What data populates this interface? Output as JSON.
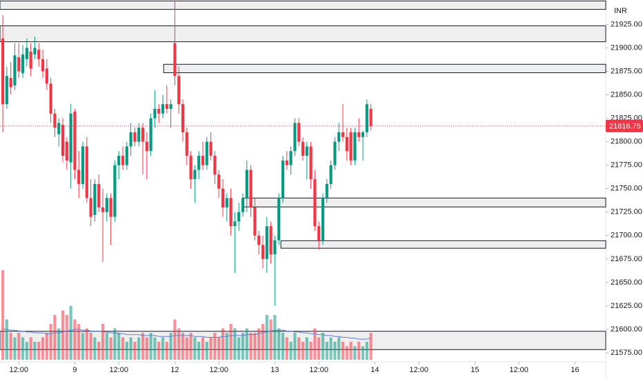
{
  "chart_data": {
    "type": "candlestick",
    "currency": "INR",
    "last_price": 21816.75,
    "up_color": "#089981",
    "down_color": "#f23645",
    "ma_color": "#5b7fd6",
    "xlim": [
      -0.7,
      150.7
    ],
    "xticks": [
      {
        "value": 4,
        "label": "12:00"
      },
      {
        "value": 18,
        "label": "9"
      },
      {
        "value": 29,
        "label": "12:00"
      },
      {
        "value": 43,
        "label": "12"
      },
      {
        "value": 54,
        "label": "12:00"
      },
      {
        "value": 68,
        "label": "13"
      },
      {
        "value": 79,
        "label": "12:00"
      },
      {
        "value": 93,
        "label": "14"
      },
      {
        "value": 104,
        "label": "12:00"
      },
      {
        "value": 118,
        "label": "15"
      },
      {
        "value": 129,
        "label": "12:00"
      },
      {
        "value": 143,
        "label": "16"
      }
    ],
    "ylim": [
      21565.5,
      21951
    ],
    "yticks": [
      {
        "value": 21575,
        "label": "21575.00"
      },
      {
        "value": 21600,
        "label": "21600.00"
      },
      {
        "value": 21625,
        "label": "21625.00"
      },
      {
        "value": 21650,
        "label": "21650.00"
      },
      {
        "value": 21675,
        "label": "21675.00"
      },
      {
        "value": 21700,
        "label": "21700.00"
      },
      {
        "value": 21725,
        "label": "21725.00"
      },
      {
        "value": 21750,
        "label": "21750.00"
      },
      {
        "value": 21775,
        "label": "21775.00"
      },
      {
        "value": 21800,
        "label": "21800.00"
      },
      {
        "value": 21825,
        "label": "21825.00"
      },
      {
        "value": 21850,
        "label": "21850.00"
      },
      {
        "value": 21875,
        "label": "21875.00"
      },
      {
        "value": 21900,
        "label": "21900.00"
      },
      {
        "value": 21925,
        "label": "21925.00"
      }
    ],
    "grid": false,
    "vlim": [
      0,
      100
    ],
    "zones": [
      {
        "start": -0.7,
        "top": 21950,
        "bottom": 21941
      },
      {
        "start": -0.7,
        "top": 21923.5,
        "bottom": 21906.5
      },
      {
        "start": 40.2,
        "top": 21882.5,
        "bottom": 21873.5
      },
      {
        "start": 60.2,
        "top": 21740,
        "bottom": 21730.5
      },
      {
        "start": 69.5,
        "top": 21694.5,
        "bottom": 21686.5
      },
      {
        "start": -0.7,
        "top": 21598,
        "bottom": 21578.5
      }
    ],
    "open": [
      21910,
      21840,
      21868,
      21860,
      21890,
      21873,
      21888,
      21896,
      21893,
      21898,
      21888,
      21878,
      21862,
      21830,
      21808,
      21818,
      21800,
      21778,
      21832,
      21770,
      21755,
      21795,
      21740,
      21722,
      21755,
      21730,
      21725,
      21740,
      21720,
      21775,
      21785,
      21775,
      21795,
      21810,
      21800,
      21815,
      21800,
      21790,
      21825,
      21835,
      21830,
      21840,
      21835,
      21905,
      21870,
      21840,
      21810,
      21785,
      21760,
      21770,
      21785,
      21775,
      21800,
      21785,
      21765,
      21750,
      21730,
      21740,
      21710,
      21715,
      21725,
      21740,
      21770,
      21730,
      21700,
      21690,
      21675,
      21710,
      21680,
      21695,
      21740,
      21780,
      21775,
      21790,
      21820,
      21800,
      21785,
      21795,
      21760,
      21710,
      21695,
      21740,
      21755,
      21775,
      21800,
      21810,
      21805,
      21810,
      21780,
      21810,
      21805,
      21810,
      21835
    ],
    "high": [
      21935,
      21880,
      21885,
      21905,
      21905,
      21903,
      21910,
      21905,
      21912,
      21905,
      21898,
      21888,
      21868,
      21835,
      21825,
      21825,
      21805,
      21840,
      21835,
      21790,
      21800,
      21805,
      21760,
      21760,
      21765,
      21750,
      21745,
      21745,
      21780,
      21790,
      21795,
      21800,
      21820,
      21815,
      21820,
      21820,
      21810,
      21830,
      21855,
      21840,
      21850,
      21860,
      21845,
      21950,
      21880,
      21845,
      21815,
      21790,
      21775,
      21790,
      21800,
      21805,
      21810,
      21790,
      21770,
      21760,
      21745,
      21750,
      21725,
      21735,
      21745,
      21780,
      21775,
      21740,
      21705,
      21700,
      21720,
      21715,
      21700,
      21745,
      21785,
      21790,
      21795,
      21825,
      21825,
      21805,
      21800,
      21800,
      21770,
      21715,
      21745,
      21760,
      21780,
      21805,
      21820,
      21840,
      21815,
      21815,
      21815,
      21825,
      21812,
      21845,
      21840
    ],
    "low": [
      21810,
      21835,
      21850,
      21855,
      21868,
      21868,
      21880,
      21870,
      21888,
      21880,
      21868,
      21855,
      21820,
      21805,
      21795,
      21778,
      21770,
      21750,
      21760,
      21740,
      21750,
      21735,
      21710,
      21715,
      21725,
      21672,
      21715,
      21690,
      21715,
      21760,
      21770,
      21770,
      21785,
      21795,
      21795,
      21765,
      21760,
      21785,
      21815,
      21820,
      21825,
      21830,
      21815,
      21860,
      21830,
      21800,
      21775,
      21750,
      21735,
      21760,
      21770,
      21770,
      21780,
      21755,
      21740,
      21720,
      21715,
      21700,
      21660,
      21705,
      21720,
      21725,
      21720,
      21695,
      21680,
      21665,
      21660,
      21670,
      21625,
      21690,
      21735,
      21770,
      21765,
      21785,
      21795,
      21780,
      21760,
      21750,
      21705,
      21685,
      21690,
      21735,
      21750,
      21770,
      21790,
      21800,
      21780,
      21775,
      21775,
      21800,
      21780,
      21805,
      21812
    ],
    "close": [
      21840,
      21870,
      21858,
      21892,
      21875,
      21893,
      21900,
      21878,
      21900,
      21888,
      21875,
      21862,
      21830,
      21815,
      21820,
      21785,
      21780,
      21830,
      21770,
      21755,
      21795,
      21740,
      21720,
      21755,
      21730,
      21725,
      21740,
      21720,
      21775,
      21785,
      21775,
      21795,
      21810,
      21800,
      21815,
      21800,
      21790,
      21825,
      21835,
      21830,
      21840,
      21835,
      21840,
      21870,
      21840,
      21810,
      21785,
      21760,
      21770,
      21785,
      21775,
      21800,
      21785,
      21765,
      21750,
      21730,
      21740,
      21710,
      21715,
      21725,
      21740,
      21770,
      21730,
      21700,
      21690,
      21675,
      21710,
      21680,
      21695,
      21740,
      21780,
      21775,
      21790,
      21820,
      21800,
      21785,
      21795,
      21760,
      21710,
      21695,
      21740,
      21755,
      21775,
      21800,
      21810,
      21805,
      21790,
      21780,
      21810,
      21805,
      21810,
      21840,
      21816.75
    ],
    "volume": [
      100,
      45,
      30,
      25,
      30,
      25,
      20,
      25,
      20,
      20,
      25,
      30,
      40,
      50,
      35,
      55,
      50,
      60,
      45,
      40,
      30,
      35,
      30,
      25,
      20,
      40,
      30,
      25,
      35,
      30,
      25,
      20,
      25,
      20,
      25,
      30,
      25,
      30,
      25,
      20,
      25,
      20,
      30,
      45,
      35,
      30,
      25,
      30,
      25,
      20,
      25,
      20,
      25,
      30,
      25,
      35,
      30,
      40,
      35,
      25,
      30,
      35,
      30,
      30,
      35,
      40,
      50,
      45,
      50,
      35,
      30,
      25,
      20,
      30,
      25,
      20,
      25,
      20,
      35,
      25,
      30,
      20,
      25,
      20,
      25,
      20,
      15,
      20,
      15,
      20,
      15,
      20,
      30
    ],
    "volume_ma": [
      34,
      34,
      33,
      33,
      32,
      32,
      31,
      31,
      30,
      30,
      30,
      29,
      29,
      30,
      30,
      31,
      32,
      33,
      34,
      34,
      33,
      33,
      32,
      32,
      32,
      31,
      31,
      30,
      30,
      29,
      29,
      28,
      28,
      28,
      28,
      27,
      27,
      27,
      27,
      26,
      26,
      26,
      26,
      27,
      27,
      27,
      27,
      27,
      26,
      26,
      26,
      25,
      25,
      25,
      25,
      26,
      26,
      27,
      27,
      27,
      27,
      28,
      28,
      28,
      29,
      30,
      31,
      32,
      33,
      33,
      33,
      32,
      32,
      31,
      31,
      30,
      30,
      29,
      29,
      28,
      28,
      27,
      27,
      26,
      26,
      25,
      25,
      24,
      24,
      23,
      23,
      23,
      24
    ]
  }
}
